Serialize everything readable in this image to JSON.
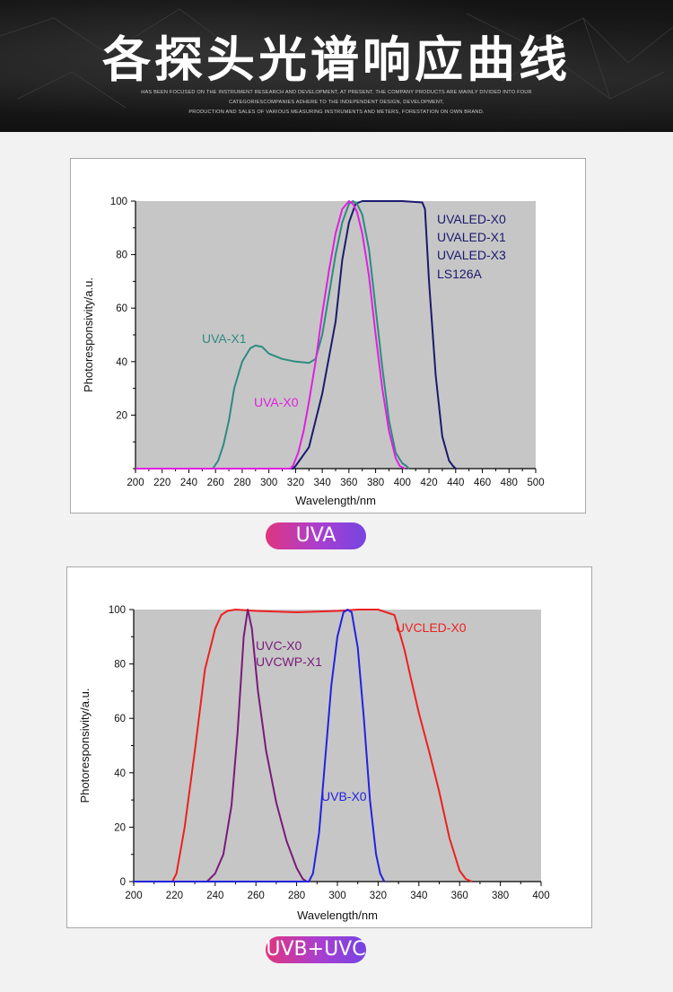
{
  "header": {
    "title": "各探头光谱响应曲线",
    "subtitle_lines": [
      "HAS BEEN FOCUSED ON THE INSTRUMENT RESEARCH AND DEVELOPMENT, AT PRESENT, THE COMPANY PRODUCTS ARE MAINLY DIVIDED INTO FOUR",
      "CATEGORIESCOMPANIES ADHERE TO THE INDEPENDENT DESIGN, DEVELOPMENT,",
      "PRODUCTION AND SALES OF VARIOUS MEASURING INSTRUMENTS AND METERS, FORESTATION ON OWN BRAND."
    ]
  },
  "badges": {
    "uva": "UVA",
    "uvb_uvc": "UVB+UVC"
  },
  "colors": {
    "plot_bg": "#c6c6c6",
    "navy": "#1a1a6e",
    "teal": "#2e8a82",
    "magenta": "#e020e0",
    "red": "#ee2020",
    "purple": "#7a1a7a",
    "blue": "#2222e0",
    "badge_gradient": [
      "#e0357f",
      "#7545e0"
    ]
  },
  "chart_data": [
    {
      "type": "line",
      "xlabel": "Wavelength/nm",
      "ylabel": "Photoresponsivity/a.u.",
      "xlim": [
        200,
        500
      ],
      "ylim": [
        0,
        100
      ],
      "xticks": [
        200,
        220,
        240,
        260,
        280,
        300,
        320,
        340,
        360,
        380,
        400,
        420,
        440,
        460,
        480,
        500
      ],
      "yticks": [
        20,
        40,
        60,
        80,
        100
      ],
      "grid": false,
      "annotations": [
        {
          "text": "UVALED-X0",
          "color": "#1a1a6e"
        },
        {
          "text": "UVALED-X1",
          "color": "#1a1a6e"
        },
        {
          "text": "UVALED-X3",
          "color": "#1a1a6e"
        },
        {
          "text": "LS126A",
          "color": "#1a1a6e"
        },
        {
          "text": "UVA-X1",
          "color": "#2e8a82"
        },
        {
          "text": "UVA-X0",
          "color": "#e020e0"
        }
      ],
      "series": [
        {
          "color": "#1a1a6e",
          "x": [
            200,
            318,
            320,
            330,
            340,
            350,
            355,
            360,
            365,
            370,
            380,
            400,
            415,
            417,
            420,
            425,
            430,
            435,
            438,
            440
          ],
          "y": [
            0,
            0,
            1,
            8,
            28,
            55,
            78,
            92,
            99,
            100,
            100,
            100,
            99.5,
            97,
            70,
            35,
            12,
            3,
            1,
            0
          ]
        },
        {
          "color": "#2e8a82",
          "x": [
            200,
            258,
            262,
            266,
            270,
            274,
            280,
            286,
            290,
            295,
            300,
            310,
            320,
            330,
            335,
            340,
            345,
            350,
            355,
            360,
            363,
            366,
            370,
            375,
            380,
            385,
            390,
            395,
            400,
            403,
            405
          ],
          "y": [
            0,
            0,
            3,
            9,
            18,
            30,
            40,
            45,
            46,
            45.5,
            43,
            41,
            40,
            39.5,
            41,
            50,
            65,
            80,
            92,
            99,
            100,
            99,
            95,
            82,
            60,
            38,
            18,
            6,
            2,
            1,
            0
          ]
        },
        {
          "color": "#e020e0",
          "x": [
            200,
            316,
            318,
            322,
            326,
            330,
            335,
            340,
            345,
            350,
            355,
            360,
            363,
            366,
            370,
            375,
            380,
            385,
            390,
            395,
            398,
            402
          ],
          "y": [
            0,
            0,
            1,
            6,
            14,
            25,
            40,
            58,
            74,
            88,
            97,
            100,
            99,
            96,
            88,
            72,
            50,
            30,
            14,
            4,
            1,
            0
          ]
        }
      ]
    },
    {
      "type": "line",
      "xlabel": "Wavelength/nm",
      "ylabel": "Photoresponsivity/a.u.",
      "xlim": [
        200,
        400
      ],
      "ylim": [
        0,
        100
      ],
      "xticks": [
        200,
        220,
        240,
        260,
        280,
        300,
        320,
        340,
        360,
        380,
        400
      ],
      "yticks": [
        0,
        20,
        40,
        60,
        80,
        100
      ],
      "grid": false,
      "annotations": [
        {
          "text": "UVCLED-X0",
          "color": "#ee2020"
        },
        {
          "text": "UVC-X0",
          "color": "#7a1a7a"
        },
        {
          "text": "UVCWP-X1",
          "color": "#7a1a7a"
        },
        {
          "text": "UVB-X0",
          "color": "#2222e0"
        }
      ],
      "series": [
        {
          "color": "#ee2020",
          "x": [
            200,
            219,
            221,
            225,
            230,
            235,
            240,
            243,
            246,
            250,
            260,
            280,
            300,
            310,
            320,
            328,
            330,
            333,
            336,
            340,
            345,
            350,
            355,
            360,
            363,
            366
          ],
          "y": [
            0,
            0,
            3,
            20,
            48,
            78,
            93,
            98,
            99.5,
            100,
            99.5,
            99,
            99.5,
            100,
            100,
            98,
            93,
            85,
            75,
            62,
            48,
            33,
            16,
            4,
            1,
            0
          ]
        },
        {
          "color": "#7a1a7a",
          "x": [
            200,
            236,
            240,
            244,
            248,
            251,
            254,
            256,
            258,
            261,
            265,
            270,
            275,
            280,
            283,
            285
          ],
          "y": [
            0,
            0,
            3,
            10,
            28,
            55,
            90,
            100,
            93,
            70,
            48,
            29,
            15,
            5,
            1,
            0
          ]
        },
        {
          "color": "#2222e0",
          "x": [
            200,
            286,
            288,
            291,
            294,
            297,
            300,
            303,
            305,
            307,
            310,
            313,
            316,
            319,
            321,
            323
          ],
          "y": [
            0,
            0,
            3,
            18,
            45,
            72,
            90,
            99,
            100,
            99,
            86,
            60,
            30,
            10,
            3,
            0
          ]
        }
      ]
    }
  ]
}
